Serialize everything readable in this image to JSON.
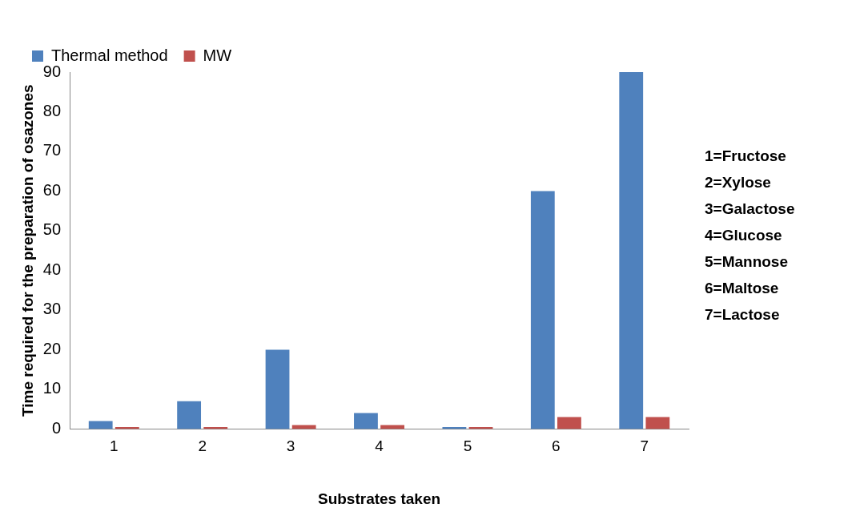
{
  "chart_data": {
    "type": "bar",
    "xlabel": "Substrates taken",
    "ylabel": "Time required for the preparation of osazones",
    "categories": [
      "1",
      "2",
      "3",
      "4",
      "5",
      "6",
      "7"
    ],
    "series": [
      {
        "name": "Thermal method",
        "color": "#4f81bd",
        "values": [
          2,
          7,
          20,
          4,
          0.5,
          60,
          90
        ]
      },
      {
        "name": "MW",
        "color": "#c0504d",
        "values": [
          0.5,
          0.5,
          1,
          1,
          0.5,
          3,
          3
        ]
      }
    ],
    "ylim": [
      0,
      90
    ],
    "yticks": [
      0,
      10,
      20,
      30,
      40,
      50,
      60,
      70,
      80,
      90
    ],
    "grid": false,
    "legend": "top left",
    "annotations": [
      "1=Fructose",
      "2=Xylose",
      "3=Galactose",
      "4=Glucose",
      "5=Mannose",
      "6=Maltose",
      "7=Lactose"
    ]
  }
}
